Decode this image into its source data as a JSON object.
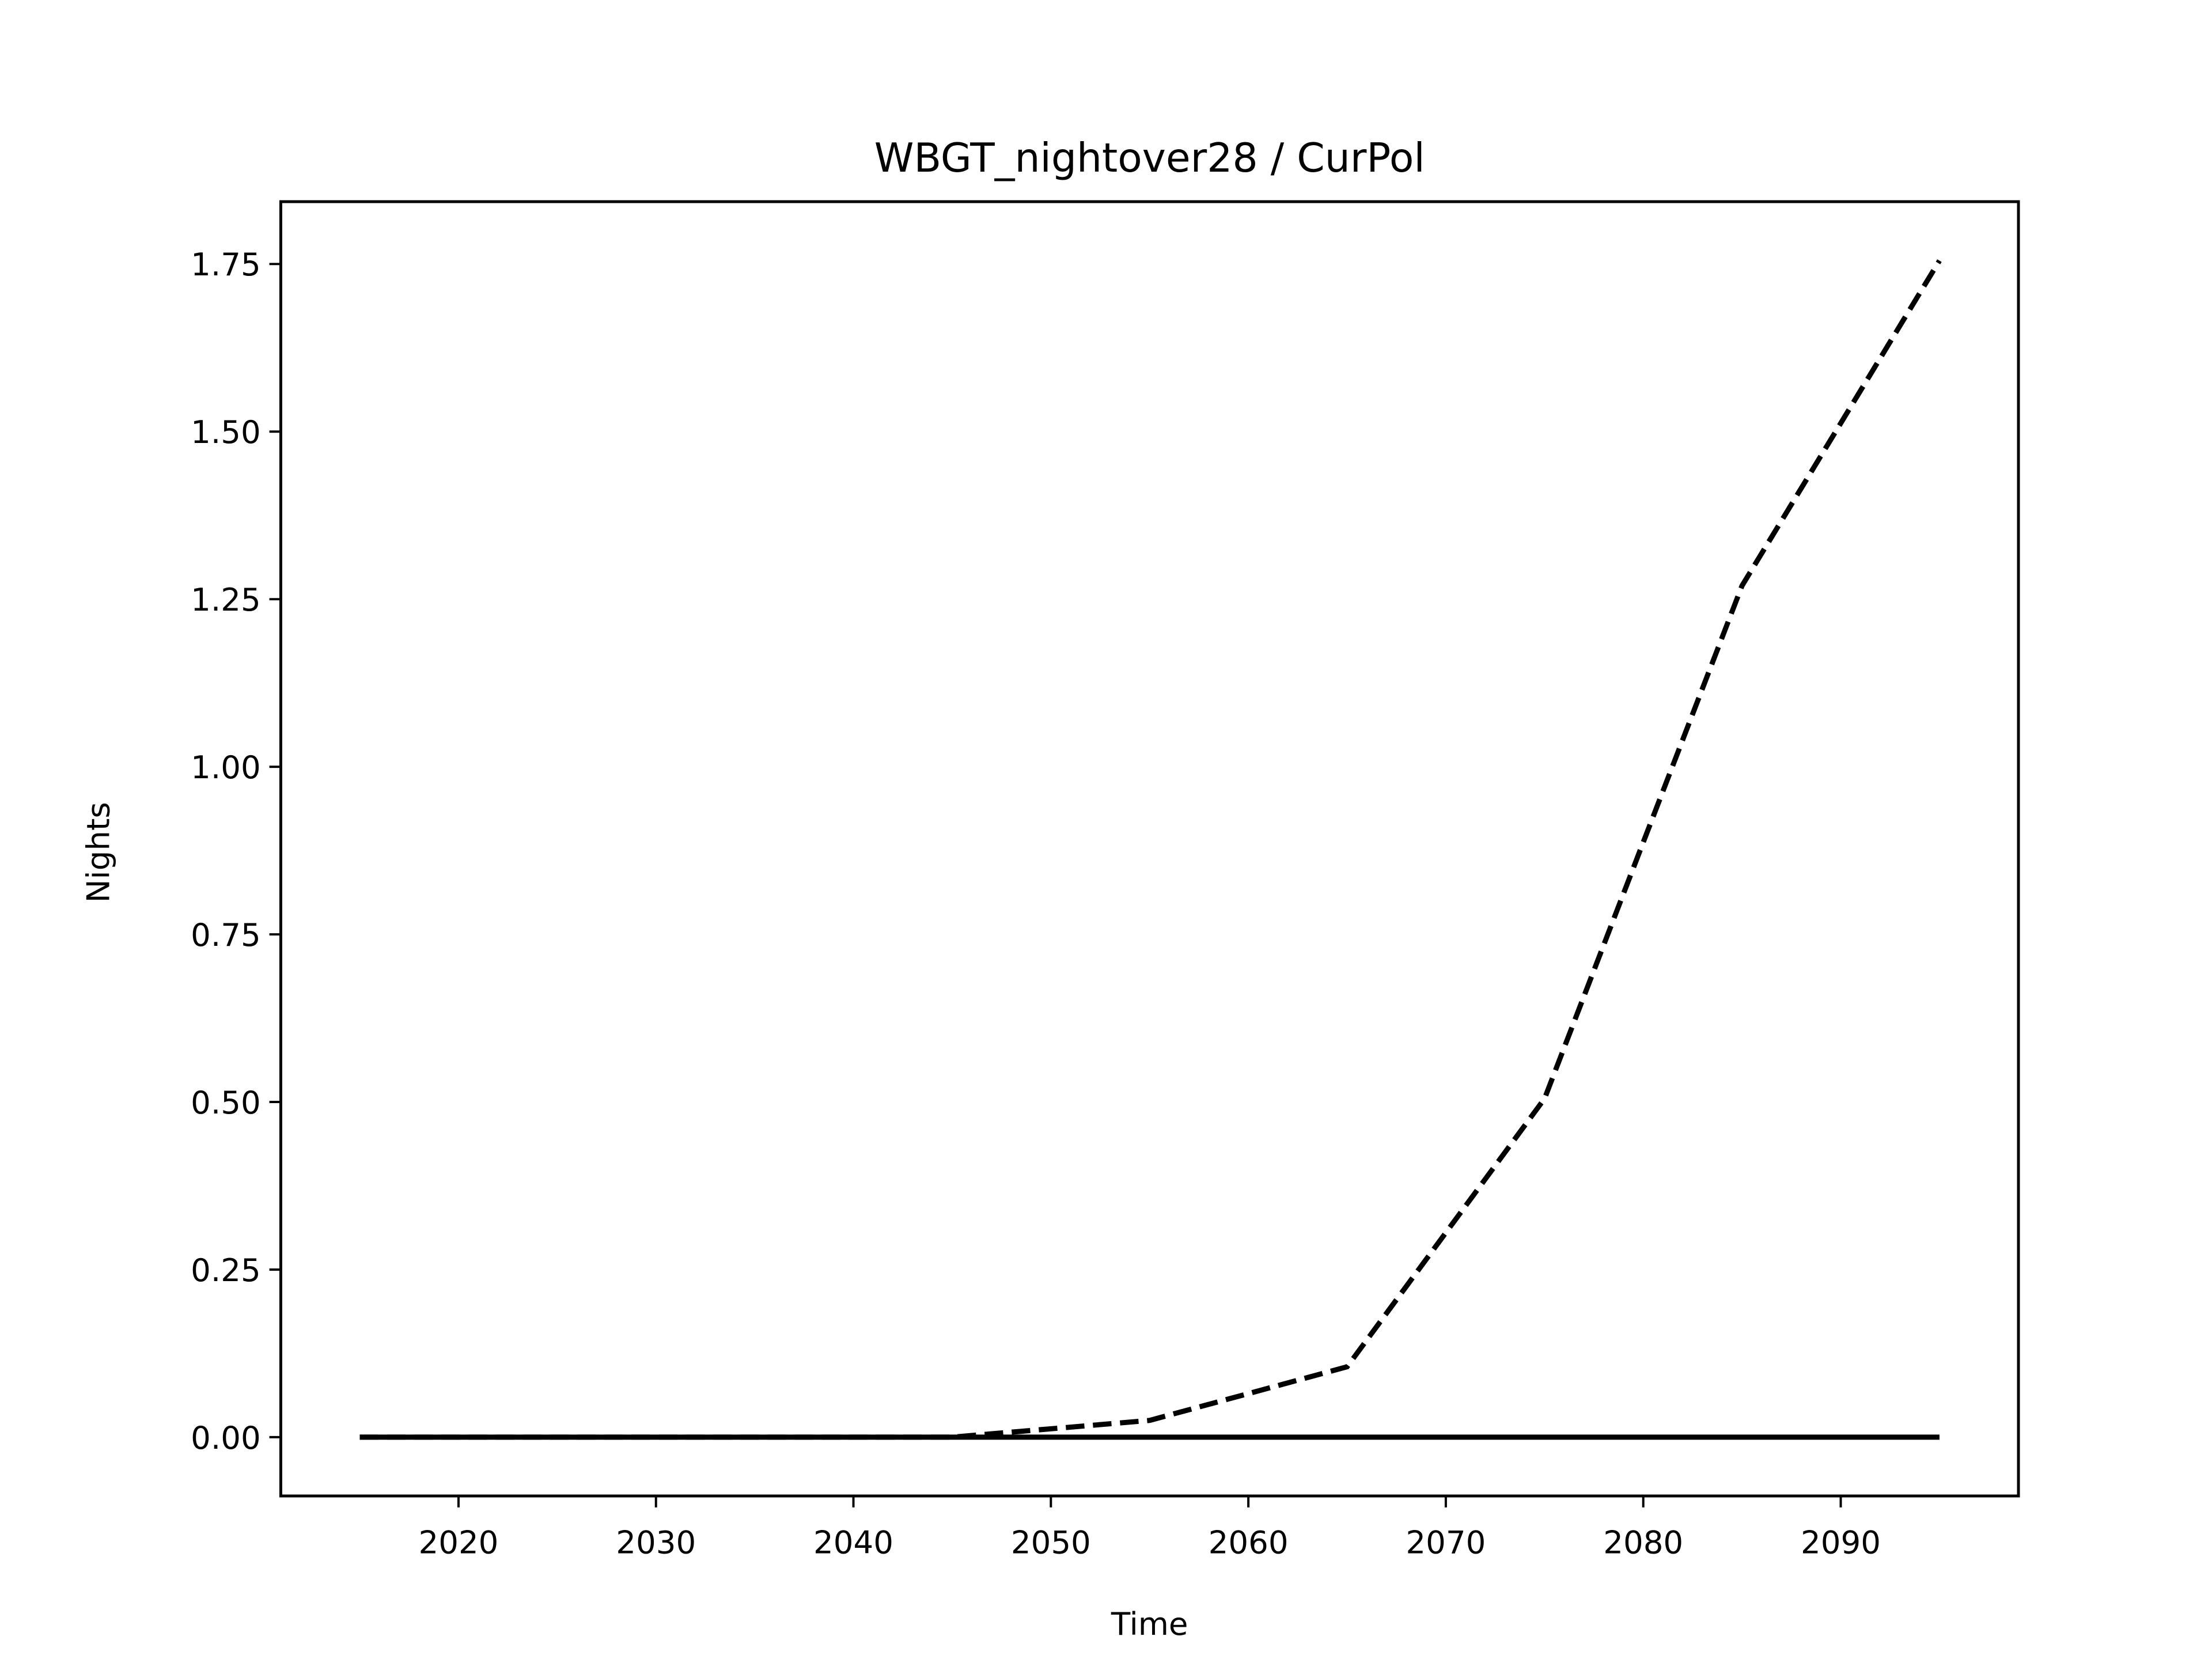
{
  "chart_data": {
    "type": "line",
    "title": "WBGT_nightover28 / CurPol",
    "x_label": "Time",
    "y_label": "Nights",
    "x": [
      2015,
      2025,
      2035,
      2045,
      2055,
      2065,
      2075,
      2085,
      2095
    ],
    "series": [
      {
        "color": "#000000",
        "dashed": true,
        "values": [
          0,
          0,
          0,
          0,
          0.025,
          0.105,
          0.505,
          1.27,
          1.755
        ]
      },
      {
        "color": "#000000",
        "dashed": false,
        "values": [
          0,
          0,
          0,
          0,
          0,
          0,
          0,
          0,
          0
        ]
      }
    ],
    "xlim": [
      2011,
      2099
    ],
    "xticks": [
      2020,
      2030,
      2040,
      2050,
      2060,
      2070,
      2080,
      2090
    ],
    "ylim": [
      -0.0877,
      1.843
    ],
    "yticks": [
      {
        "value": 0,
        "label": "0.00"
      },
      {
        "value": 0.25,
        "label": "0.25"
      },
      {
        "value": 0.5,
        "label": "0.50"
      },
      {
        "value": 0.75,
        "label": "0.75"
      },
      {
        "value": 1,
        "label": "1.00"
      },
      {
        "value": 1.25,
        "label": "1.25"
      },
      {
        "value": 1.5,
        "label": "1.50"
      },
      {
        "value": 1.75,
        "label": "1.75"
      }
    ],
    "grid": false
  }
}
